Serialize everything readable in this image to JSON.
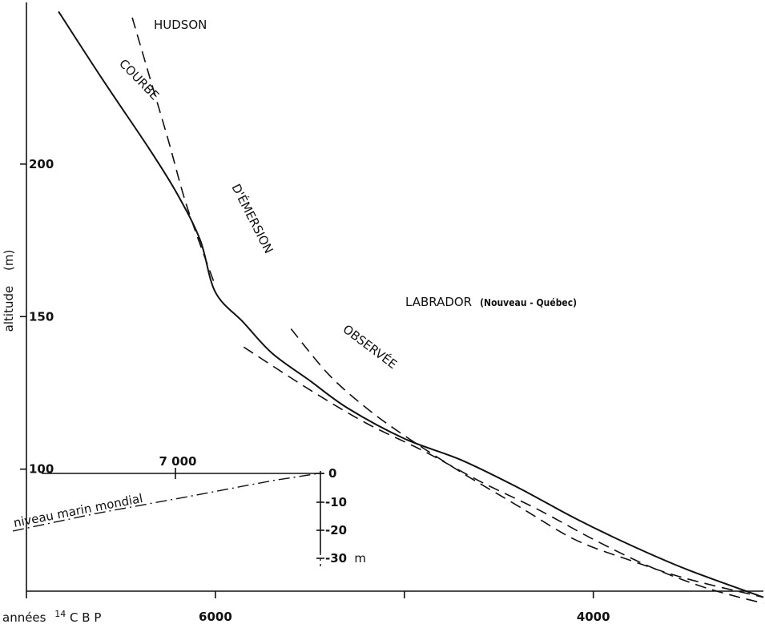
{
  "chart_data": {
    "type": "line",
    "ylabel": "altitude",
    "yunit": "(m)",
    "xlabel_prefix": "années",
    "xlabel_sup": "14",
    "xlabel_suffix": "C B P",
    "xlim": [
      7000,
      3100
    ],
    "ylim": [
      60,
      253
    ],
    "x_ticks": [
      7000,
      6000,
      5000,
      4000
    ],
    "x_tick_labels": [
      "",
      "6000",
      "",
      "4000"
    ],
    "y_ticks": [
      200,
      150,
      100
    ],
    "y_tick_labels": [
      "200",
      "150",
      "100"
    ],
    "series": [
      {
        "name": "COURBE D'ÉMERSION OBSERVÉE",
        "style": "solid",
        "label_parts": [
          "COURBE",
          "D'ÉMERSION",
          "OBSERVÉE"
        ],
        "x": [
          6830,
          6600,
          6350,
          6200,
          6080,
          6000,
          5850,
          5700,
          5500,
          5300,
          5000,
          4700,
          4400,
          4100,
          3800,
          3500,
          3100
        ],
        "y": [
          250,
          228,
          205,
          190,
          175,
          158,
          148,
          138,
          129,
          120,
          110,
          103,
          94,
          84,
          75,
          67,
          58
        ]
      },
      {
        "name": "HUDSON",
        "style": "dashed",
        "x": [
          6440,
          6350,
          6250,
          6150,
          6000
        ],
        "y": [
          248,
          229,
          208,
          186,
          160
        ]
      },
      {
        "name": "LABRADOR",
        "qualifier": "(Nouveau - Québec)",
        "style": "dashed",
        "x": [
          5600,
          5400,
          5200,
          5000,
          4700,
          4400,
          4100,
          3800,
          3500,
          3100
        ],
        "y": [
          146,
          131,
          120,
          111,
          99,
          88,
          77,
          70,
          64,
          58
        ]
      },
      {
        "name": "lower-dashed",
        "style": "dashed",
        "x": [
          5850,
          5500,
          5200,
          4900,
          4600,
          4300,
          4000,
          3700,
          3400,
          3100
        ],
        "y": [
          140,
          126,
          115,
          106,
          96,
          87,
          77,
          68,
          61,
          56
        ]
      }
    ],
    "inset": {
      "xlabel": "7 000",
      "ylabels": [
        "0",
        "-10",
        "-20",
        "-30"
      ],
      "yunit": "m",
      "series_label": "niveau  marin  mondial"
    }
  }
}
